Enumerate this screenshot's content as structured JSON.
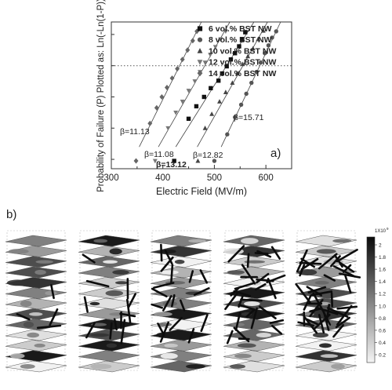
{
  "chart_data": {
    "type": "scatter",
    "panel_label": "a)",
    "xlabel": "Electric Field (MV/m)",
    "ylabel": "Probability of Failure (P) Plotted as: Ln(-Ln(1-P))",
    "xlim": [
      300,
      650
    ],
    "ylim": [
      -3.3,
      1.4
    ],
    "xticks": [
      "300",
      "400",
      "500",
      "600"
    ],
    "series": [
      {
        "name": "6 vol.% BST NW",
        "marker": "square",
        "x": [
          422,
          450,
          465,
          480,
          493,
          508,
          515,
          524,
          532,
          540,
          548,
          554,
          560
        ],
        "y": [
          -3.05,
          -1.7,
          -1.3,
          -1.0,
          -0.72,
          -0.48,
          -0.25,
          -0.02,
          0.2,
          0.4,
          0.62,
          0.85,
          1.07
        ]
      },
      {
        "name": "8 vol.% BST NW",
        "marker": "circle",
        "x": [
          500,
          525,
          540,
          552,
          562,
          572,
          582,
          590,
          598,
          605,
          612,
          620
        ],
        "y": [
          -3.05,
          -2.2,
          -1.65,
          -1.25,
          -0.9,
          -0.55,
          -0.2,
          0.1,
          0.4,
          0.65,
          0.9,
          1.1
        ]
      },
      {
        "name": "10 vol.% BST NW",
        "marker": "triangle",
        "x": [
          468,
          482,
          495,
          510,
          522,
          535,
          545,
          555,
          565,
          575,
          585,
          595
        ],
        "y": [
          -3.05,
          -2.0,
          -1.55,
          -1.15,
          -0.85,
          -0.55,
          -0.25,
          0.05,
          0.3,
          0.55,
          0.85,
          1.12
        ]
      },
      {
        "name": "12 vol.% BST NW",
        "marker": "triangle-down",
        "x": [
          385,
          410,
          425,
          438,
          450,
          462,
          472,
          482,
          492,
          502,
          512,
          522
        ],
        "y": [
          -3.05,
          -2.0,
          -1.5,
          -1.15,
          -0.8,
          -0.5,
          -0.2,
          0.1,
          0.35,
          0.6,
          0.85,
          1.1
        ]
      },
      {
        "name": "14 vol.% BST NW",
        "marker": "diamond",
        "x": [
          348,
          375,
          388,
          398,
          408,
          418,
          428,
          438,
          448,
          458,
          466
        ],
        "y": [
          -3.05,
          -1.85,
          -1.35,
          -1.0,
          -0.7,
          -0.4,
          -0.1,
          0.2,
          0.5,
          0.8,
          1.1
        ]
      }
    ],
    "annotations": [
      "β=11.13",
      "β=11.08",
      "β=13.12",
      "β=12.82",
      "β=15.71"
    ]
  },
  "panel_b": {
    "label": "b)",
    "colorbar": {
      "exponent_label": "1X10",
      "exponent_power": "9",
      "ticks": [
        "2",
        "1.8",
        "1.6",
        "1.4",
        "1.2",
        "1.0",
        "0.8",
        "0.6",
        "0.4",
        "0.2"
      ]
    },
    "stack_count": 5
  }
}
